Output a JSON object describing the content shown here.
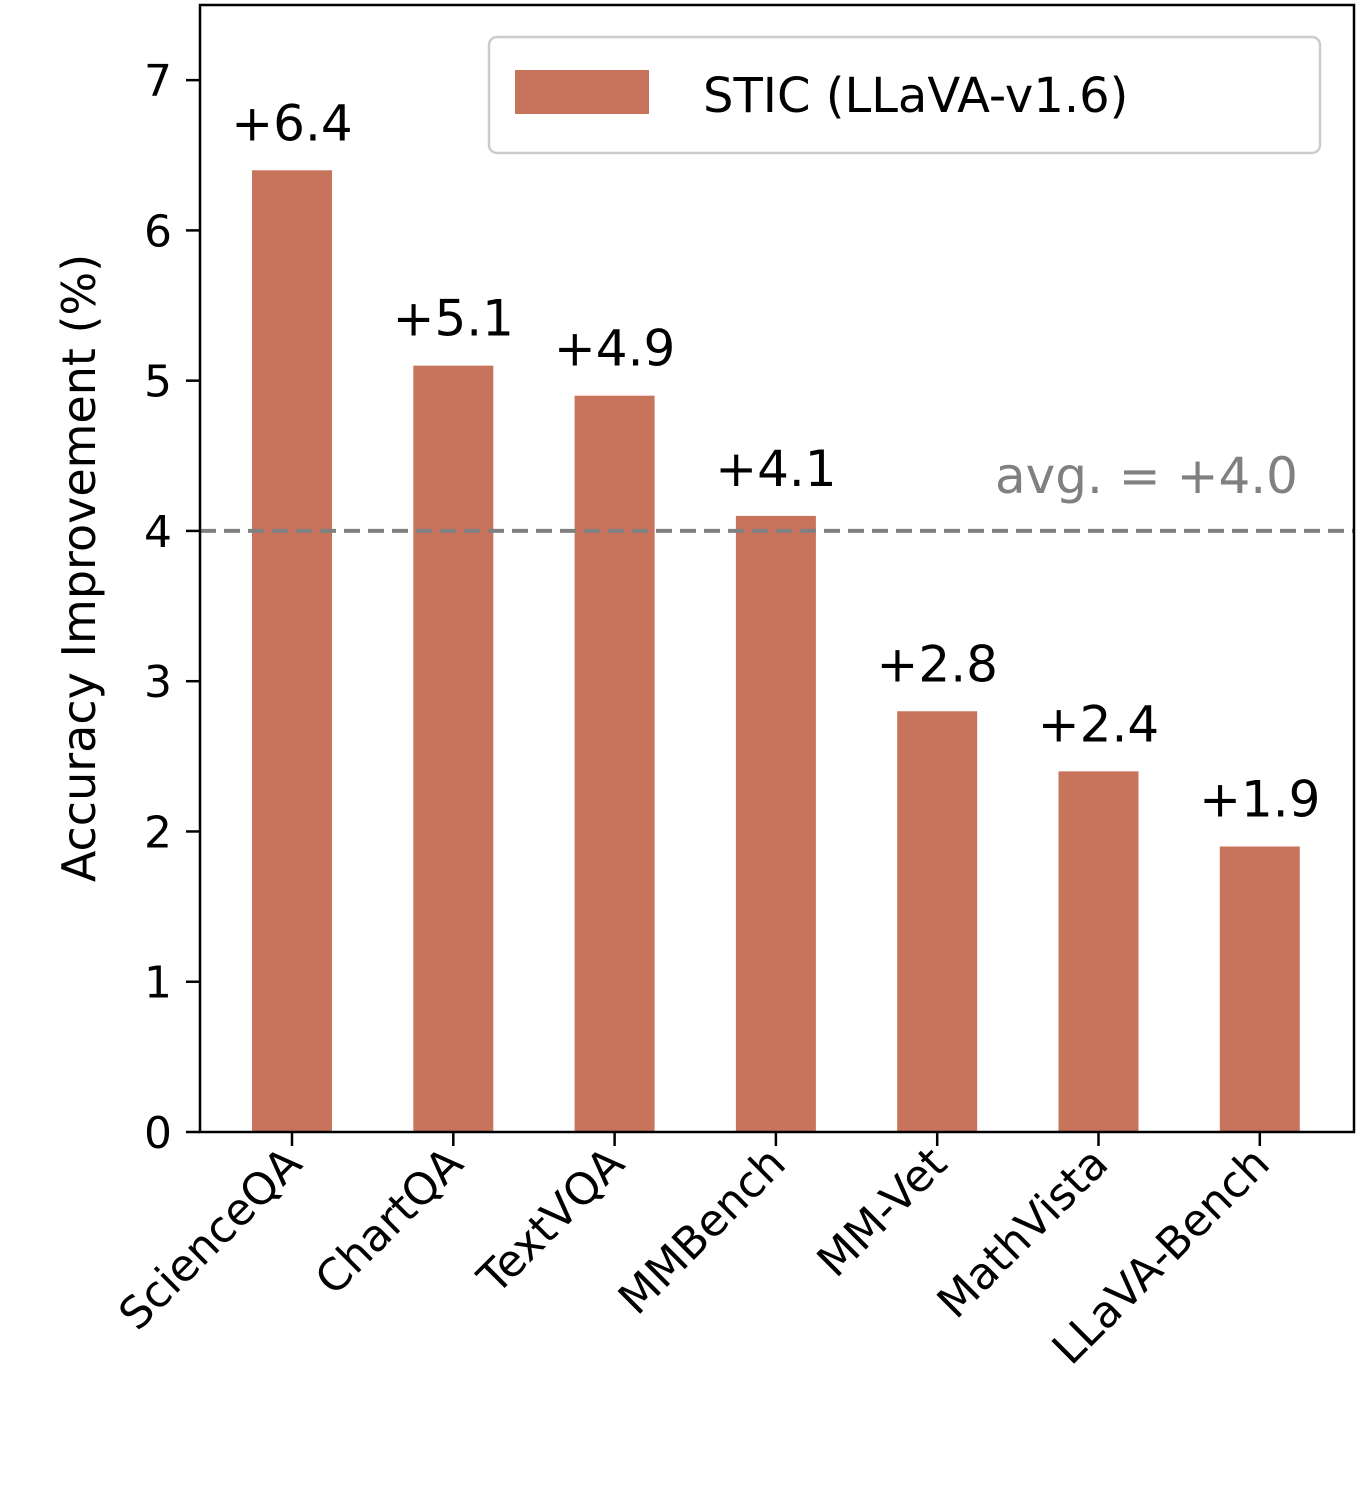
{
  "chart_data": {
    "type": "bar",
    "categories": [
      "ScienceQA",
      "ChartQA",
      "TextVQA",
      "MMBench",
      "MM-Vet",
      "MathVista",
      "LLaVA-Bench"
    ],
    "series": [
      {
        "name": "STIC (LLaVA-v1.6)",
        "values": [
          6.4,
          5.1,
          4.9,
          4.1,
          2.8,
          2.4,
          1.9
        ],
        "color": "#c8735c"
      }
    ],
    "value_labels": [
      "+6.4",
      "+5.1",
      "+4.9",
      "+4.1",
      "+2.8",
      "+2.4",
      "+1.9"
    ],
    "ylabel": "Accuracy Improvement (%)",
    "xlabel": "",
    "ylim": [
      0,
      7.5
    ],
    "yticks": [
      0,
      1,
      2,
      3,
      4,
      5,
      6,
      7
    ],
    "reference_line": {
      "value": 4.0,
      "label": "avg. = +4.0",
      "style": "dashed",
      "color": "#808080"
    },
    "legend": {
      "position": "top-right"
    },
    "grid": false
  }
}
